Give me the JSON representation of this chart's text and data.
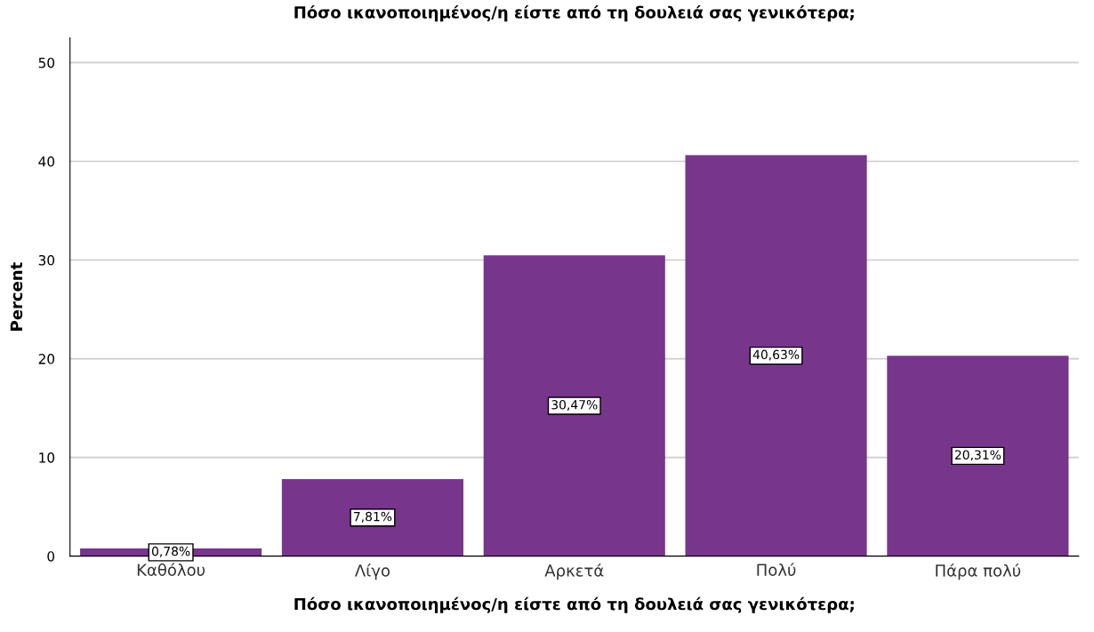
{
  "chart_data": {
    "type": "bar",
    "title": "Πόσο ικανοποιημένος/η είστε από τη δουλειά σας γενικότερα;",
    "xlabel": "Πόσο ικανοποιημένος/η είστε από τη δουλειά σας γενικότερα;",
    "ylabel": "Percent",
    "categories": [
      "Καθόλου",
      "Λίγο",
      "Αρκετά",
      "Πολύ",
      "Πάρα πολύ"
    ],
    "values": [
      0.78,
      7.81,
      30.47,
      40.63,
      20.31
    ],
    "value_labels": [
      "0,78%",
      "7,81%",
      "30,47%",
      "40,63%",
      "20,31%"
    ],
    "color": "#77368b",
    "ylim": [
      0,
      52.5
    ],
    "yticks": [
      0,
      10,
      20,
      30,
      40,
      50
    ],
    "grid": "y"
  }
}
